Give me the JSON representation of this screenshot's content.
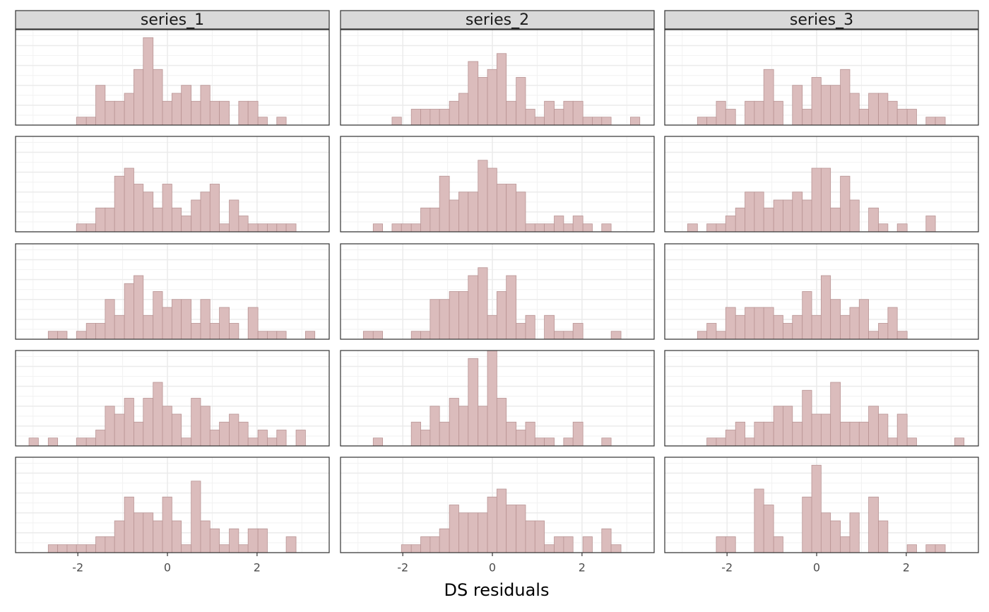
{
  "chart_data": {
    "type": "histogram",
    "xlabel": "DS residuals",
    "bins": [
      -3.09,
      -2.88,
      -2.66,
      -2.45,
      -2.24,
      -2.03,
      -1.81,
      -1.6,
      -1.39,
      -1.18,
      -0.96,
      -0.75,
      -0.54,
      -0.32,
      -0.11,
      0.1,
      0.31,
      0.53,
      0.74,
      0.95,
      1.16,
      1.38,
      1.59,
      1.8,
      2.02,
      2.23,
      2.44,
      2.65,
      2.87,
      3.08,
      3.29
    ],
    "xlim": [
      -3.39,
      3.61
    ],
    "xticks": [
      -2,
      0,
      2
    ],
    "ylim": [
      0,
      12
    ],
    "yticks": [
      0,
      2.5,
      5,
      7.5,
      10
    ],
    "grid": true,
    "series": [
      {
        "name": "series_1",
        "color": "#dbbcbc",
        "values": [
          [
            0,
            0,
            0,
            0,
            0,
            1,
            1,
            5,
            3,
            3,
            4,
            7,
            11,
            7,
            3,
            4,
            5,
            3,
            5,
            3,
            3,
            0,
            3,
            3,
            1,
            0,
            1,
            0,
            0,
            0
          ],
          [
            0,
            0,
            0,
            0,
            0,
            1,
            1,
            3,
            3,
            7,
            8,
            6,
            5,
            3,
            6,
            3,
            2,
            4,
            5,
            6,
            1,
            4,
            2,
            1,
            1,
            1,
            1,
            1,
            0,
            0
          ],
          [
            0,
            0,
            1,
            1,
            0,
            1,
            2,
            2,
            5,
            3,
            7,
            8,
            3,
            6,
            4,
            5,
            5,
            2,
            5,
            2,
            4,
            2,
            0,
            4,
            1,
            1,
            1,
            0,
            0,
            1
          ],
          [
            1,
            0,
            1,
            0,
            0,
            1,
            1,
            2,
            5,
            4,
            6,
            3,
            6,
            8,
            5,
            4,
            1,
            6,
            5,
            2,
            3,
            4,
            3,
            1,
            2,
            1,
            2,
            0,
            2,
            0
          ],
          [
            0,
            0,
            1,
            1,
            1,
            1,
            1,
            2,
            2,
            4,
            7,
            5,
            5,
            4,
            7,
            4,
            1,
            9,
            4,
            3,
            1,
            3,
            1,
            3,
            3,
            0,
            0,
            2,
            0,
            0
          ]
        ]
      },
      {
        "name": "series_2",
        "color": "#dbbcbc",
        "values": [
          [
            0,
            0,
            0,
            0,
            1,
            0,
            2,
            2,
            2,
            2,
            3,
            4,
            8,
            6,
            7,
            9,
            3,
            6,
            2,
            1,
            3,
            2,
            3,
            3,
            1,
            1,
            1,
            0,
            0,
            1
          ],
          [
            0,
            0,
            1,
            0,
            1,
            1,
            1,
            3,
            3,
            7,
            4,
            5,
            5,
            9,
            8,
            6,
            6,
            5,
            1,
            1,
            1,
            2,
            1,
            2,
            1,
            0,
            1,
            0,
            0,
            0
          ],
          [
            0,
            1,
            1,
            0,
            0,
            0,
            1,
            1,
            5,
            5,
            6,
            6,
            8,
            9,
            3,
            6,
            8,
            2,
            3,
            0,
            3,
            1,
            1,
            2,
            0,
            0,
            0,
            1,
            0,
            0
          ],
          [
            0,
            0,
            1,
            0,
            0,
            0,
            3,
            2,
            5,
            3,
            6,
            5,
            11,
            5,
            12,
            6,
            3,
            2,
            3,
            1,
            1,
            0,
            1,
            3,
            0,
            0,
            1,
            0,
            0,
            0
          ],
          [
            0,
            0,
            0,
            0,
            0,
            1,
            1,
            2,
            2,
            3,
            6,
            5,
            5,
            5,
            7,
            8,
            6,
            6,
            4,
            4,
            1,
            2,
            2,
            0,
            2,
            0,
            3,
            1,
            0,
            0
          ]
        ]
      },
      {
        "name": "series_3",
        "color": "#dbbcbc",
        "values": [
          [
            0,
            0,
            1,
            1,
            3,
            2,
            0,
            3,
            3,
            7,
            3,
            0,
            5,
            2,
            6,
            5,
            5,
            7,
            4,
            2,
            4,
            4,
            3,
            2,
            2,
            0,
            1,
            1,
            0,
            0
          ],
          [
            0,
            1,
            0,
            1,
            1,
            2,
            3,
            5,
            5,
            3,
            4,
            4,
            5,
            4,
            8,
            8,
            3,
            7,
            4,
            0,
            3,
            1,
            0,
            1,
            0,
            0,
            2,
            0,
            0,
            0
          ],
          [
            0,
            0,
            1,
            2,
            1,
            4,
            3,
            4,
            4,
            4,
            3,
            2,
            3,
            6,
            3,
            8,
            5,
            3,
            4,
            5,
            1,
            2,
            4,
            1,
            0,
            0,
            0,
            0,
            0,
            0
          ],
          [
            0,
            0,
            0,
            1,
            1,
            2,
            3,
            1,
            3,
            3,
            5,
            5,
            3,
            7,
            4,
            4,
            8,
            3,
            3,
            3,
            5,
            4,
            1,
            4,
            1,
            0,
            0,
            0,
            0,
            1
          ],
          [
            0,
            0,
            0,
            0,
            2,
            2,
            0,
            0,
            8,
            6,
            2,
            0,
            0,
            7,
            11,
            5,
            4,
            2,
            5,
            0,
            7,
            4,
            0,
            0,
            1,
            0,
            1,
            1,
            0,
            0
          ]
        ]
      }
    ]
  }
}
